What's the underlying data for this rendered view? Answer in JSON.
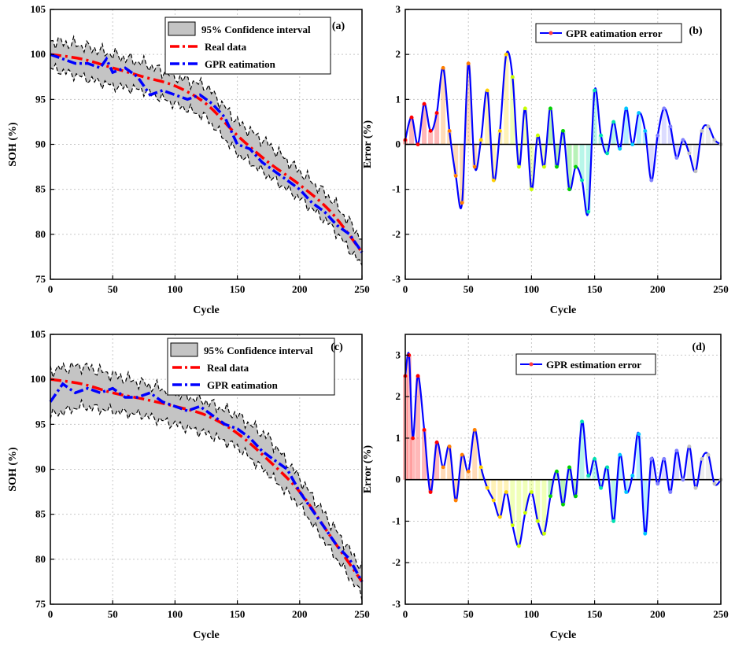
{
  "chart_data": [
    {
      "panel": "(a)",
      "type": "line",
      "xlabel": "Cycle",
      "ylabel": "SOH (%)",
      "xlim": [
        0,
        250
      ],
      "ylim": [
        75,
        105
      ],
      "xticks": [
        0,
        50,
        100,
        150,
        200,
        250
      ],
      "yticks": [
        75,
        80,
        85,
        90,
        95,
        100,
        105
      ],
      "grid": true,
      "legend": {
        "position": "top-right",
        "entries": [
          "95% Confidence interval",
          "Real data",
          "GPR eatimation"
        ]
      },
      "series": [
        {
          "name": "Real data",
          "color": "#ff0000",
          "x": [
            0,
            25,
            50,
            75,
            100,
            125,
            150,
            175,
            200,
            225,
            250
          ],
          "values": [
            100,
            99.5,
            98.5,
            97.5,
            96.5,
            94.5,
            91.0,
            88.0,
            85.5,
            82.5,
            78.0
          ]
        },
        {
          "name": "GPR eatimation",
          "color": "#0000ff",
          "x": [
            0,
            10,
            20,
            30,
            40,
            45,
            50,
            60,
            70,
            80,
            90,
            100,
            110,
            120,
            130,
            140,
            150,
            160,
            170,
            180,
            190,
            200,
            210,
            220,
            230,
            240,
            250
          ],
          "values": [
            100,
            99.5,
            99.0,
            99.0,
            98.5,
            99.5,
            98.0,
            98.5,
            97.5,
            95.5,
            96.0,
            95.5,
            95.0,
            95.5,
            94.5,
            93.0,
            90.0,
            89.5,
            88.0,
            87.0,
            86.0,
            85.0,
            83.5,
            82.5,
            81.0,
            80.0,
            78.0
          ]
        },
        {
          "name": "95% Confidence interval",
          "color": "#c0c0c0",
          "x": [
            0,
            25,
            50,
            75,
            100,
            125,
            150,
            175,
            200,
            225,
            250
          ],
          "upper": [
            101.5,
            101.0,
            100.0,
            99.0,
            97.5,
            96.5,
            92.5,
            90.0,
            87.0,
            84.0,
            79.5
          ],
          "lower": [
            98.5,
            97.5,
            96.5,
            96.0,
            94.5,
            93.0,
            89.0,
            86.5,
            84.0,
            81.0,
            76.5
          ]
        }
      ]
    },
    {
      "panel": "(b)",
      "type": "line",
      "xlabel": "Cycle",
      "ylabel": "Error (%)",
      "xlim": [
        0,
        250
      ],
      "ylim": [
        -3,
        3
      ],
      "xticks": [
        0,
        50,
        100,
        150,
        200,
        250
      ],
      "yticks": [
        -3,
        -2,
        -1,
        0,
        1,
        2,
        3
      ],
      "grid": true,
      "legend": {
        "position": "top-right",
        "entries": [
          "GPR eatimation error"
        ]
      },
      "series": [
        {
          "name": "GPR eatimation error",
          "color": "#0000ff",
          "x": [
            0,
            5,
            10,
            15,
            20,
            25,
            30,
            35,
            40,
            45,
            50,
            55,
            60,
            65,
            70,
            75,
            80,
            85,
            90,
            95,
            100,
            105,
            110,
            115,
            120,
            125,
            130,
            135,
            140,
            145,
            150,
            155,
            160,
            165,
            170,
            175,
            180,
            185,
            190,
            195,
            200,
            205,
            210,
            215,
            220,
            225,
            230,
            235,
            240,
            245,
            250
          ],
          "values": [
            0.1,
            0.6,
            0.0,
            0.9,
            0.3,
            0.7,
            1.7,
            0.3,
            -0.7,
            -1.3,
            1.8,
            -0.5,
            0.1,
            1.2,
            -0.8,
            0.3,
            2.0,
            1.5,
            -0.5,
            0.8,
            -1.0,
            0.2,
            -0.5,
            0.8,
            -0.5,
            0.3,
            -1.0,
            -0.5,
            -0.8,
            -1.5,
            1.2,
            0.2,
            -0.2,
            0.5,
            -0.1,
            0.8,
            0.0,
            0.7,
            0.3,
            -0.8,
            0.2,
            0.8,
            0.4,
            -0.3,
            0.1,
            -0.2,
            -0.6,
            0.3,
            0.4,
            0.1,
            0.0
          ]
        }
      ]
    },
    {
      "panel": "(c)",
      "type": "line",
      "xlabel": "Cycle",
      "ylabel": "SOH (%)",
      "xlim": [
        0,
        250
      ],
      "ylim": [
        75,
        105
      ],
      "xticks": [
        0,
        50,
        100,
        150,
        200,
        250
      ],
      "yticks": [
        75,
        80,
        85,
        90,
        95,
        100,
        105
      ],
      "grid": true,
      "legend": {
        "position": "top-right",
        "entries": [
          "95% Confidence interval",
          "Real data",
          "GPR eatimation"
        ]
      },
      "series": [
        {
          "name": "Real data",
          "color": "#ff0000",
          "x": [
            0,
            25,
            50,
            75,
            100,
            125,
            150,
            175,
            200,
            225,
            250
          ],
          "values": [
            100,
            99.5,
            98.5,
            97.8,
            97.0,
            96.0,
            94.0,
            91.0,
            87.5,
            82.5,
            77.5
          ]
        },
        {
          "name": "GPR eatimation",
          "color": "#0000ff",
          "x": [
            0,
            10,
            20,
            30,
            40,
            50,
            60,
            70,
            80,
            90,
            100,
            110,
            120,
            130,
            140,
            150,
            160,
            170,
            180,
            190,
            200,
            210,
            220,
            230,
            240,
            250
          ],
          "values": [
            97.5,
            99.5,
            98.5,
            99.0,
            98.5,
            99.0,
            98.0,
            98.0,
            98.5,
            97.5,
            97.0,
            96.5,
            97.0,
            96.0,
            95.0,
            94.5,
            93.5,
            92.0,
            91.0,
            90.0,
            87.5,
            85.5,
            83.5,
            81.5,
            80.0,
            77.5
          ]
        },
        {
          "name": "95% Confidence interval",
          "color": "#c0c0c0",
          "x": [
            0,
            25,
            50,
            75,
            100,
            125,
            150,
            175,
            200,
            225,
            250
          ],
          "upper": [
            101.0,
            101.5,
            100.5,
            99.5,
            98.5,
            97.5,
            96.0,
            93.5,
            89.0,
            84.0,
            79.0
          ],
          "lower": [
            96.0,
            97.0,
            96.5,
            96.0,
            95.0,
            94.0,
            92.5,
            89.5,
            86.0,
            81.0,
            76.0
          ]
        }
      ]
    },
    {
      "panel": "(d)",
      "type": "line",
      "xlabel": "Cycle",
      "ylabel": "Error (%)",
      "xlim": [
        0,
        250
      ],
      "ylim": [
        -3,
        3.5
      ],
      "xticks": [
        0,
        50,
        100,
        150,
        200,
        250
      ],
      "yticks": [
        -3,
        -2,
        -1,
        0,
        1,
        2,
        3
      ],
      "grid": true,
      "legend": {
        "position": "top-right",
        "entries": [
          "GPR estimation error"
        ]
      },
      "series": [
        {
          "name": "GPR estimation error",
          "color": "#0000ff",
          "x": [
            0,
            3,
            6,
            10,
            15,
            20,
            25,
            30,
            35,
            40,
            45,
            50,
            55,
            60,
            65,
            70,
            75,
            80,
            85,
            90,
            95,
            100,
            105,
            110,
            115,
            120,
            125,
            130,
            135,
            140,
            145,
            150,
            155,
            160,
            165,
            170,
            175,
            180,
            185,
            190,
            195,
            200,
            205,
            210,
            215,
            220,
            225,
            230,
            235,
            240,
            245,
            250
          ],
          "values": [
            2.5,
            3.0,
            1.0,
            2.5,
            1.2,
            -0.3,
            0.9,
            0.3,
            0.8,
            -0.5,
            0.6,
            0.2,
            1.2,
            0.3,
            -0.2,
            -0.5,
            -0.9,
            -0.3,
            -1.1,
            -1.6,
            -0.8,
            -0.3,
            -1.0,
            -1.3,
            -0.4,
            0.2,
            -0.6,
            0.3,
            -0.4,
            1.4,
            0.1,
            0.5,
            -0.2,
            0.3,
            -1.0,
            0.6,
            -0.3,
            0.1,
            1.1,
            -1.3,
            0.5,
            -0.1,
            0.5,
            -0.3,
            0.7,
            0.0,
            0.8,
            -0.2,
            0.5,
            0.6,
            -0.1,
            0.0
          ]
        }
      ]
    }
  ]
}
